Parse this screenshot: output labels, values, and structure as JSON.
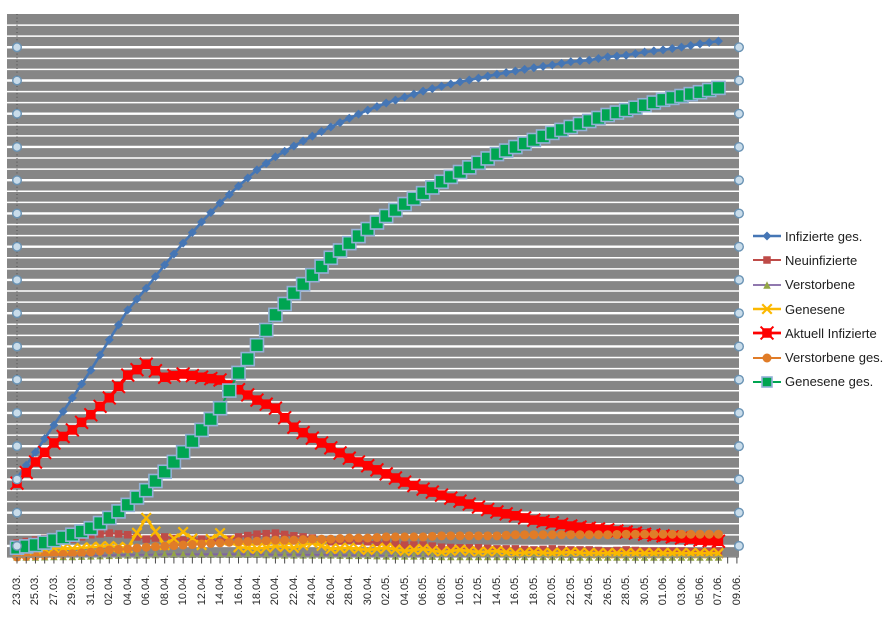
{
  "window": {
    "background": "#ffffff"
  },
  "chart_data": {
    "type": "line",
    "title": "",
    "x_tick_labels": [
      "23.03.",
      "25.03.",
      "27.03.",
      "29.03.",
      "31.03.",
      "02.04.",
      "04.04.",
      "06.04.",
      "08.04.",
      "10.04.",
      "12.04.",
      "14.04.",
      "16.04.",
      "18.04.",
      "20.04.",
      "22.04.",
      "24.04.",
      "26.04.",
      "28.04.",
      "30.04.",
      "02.05.",
      "04.05.",
      "06.05.",
      "08.05.",
      "10.05.",
      "12.05.",
      "14.05.",
      "16.05.",
      "18.05.",
      "20.05.",
      "22.05.",
      "24.05.",
      "26.05.",
      "28.05.",
      "30.05.",
      "01.06.",
      "03.06.",
      "05.06.",
      "07.06.",
      "09.06."
    ],
    "x_axis": {
      "labels_rotated_degrees": 90,
      "tick_every_day": true,
      "label_every_n_days": 2
    },
    "y_axis": {
      "tick_labels_visible": false,
      "value_scale": "percent of plot height (chart shows no y-axis labels)",
      "ylim": [
        0,
        100
      ]
    },
    "legend_position": "right",
    "grid": {
      "on": true,
      "minor_and_major_horizontal": true
    },
    "plot_style": {
      "background": "#868686",
      "gridline_color": "#ffffff",
      "selected_gridline_handles": true,
      "handle_fill": "#C9DCEA",
      "handle_stroke": "#6A93B4",
      "axis_color": "#4a4a4a"
    },
    "series": [
      {
        "name": "Infizierte ges.",
        "line_color": "#4576B5",
        "marker": "diamond",
        "marker_color": "#4576B5",
        "marker_size": 9,
        "line_width": 2.6,
        "values_pct": [
          14.5,
          19.3,
          24.3,
          29.3,
          34.4,
          40.0,
          45.5,
          49.5,
          53.8,
          57.8,
          61.7,
          65.2,
          68.3,
          71.3,
          73.7,
          75.7,
          77.5,
          79.2,
          80.8,
          82.3,
          83.6,
          84.7,
          85.8,
          86.7,
          87.5,
          88.2,
          88.9,
          89.5,
          90.1,
          90.6,
          91.2,
          91.5,
          92.1,
          92.4,
          93.0,
          93.4,
          93.9,
          94.5,
          95.0,
          null
        ]
      },
      {
        "name": "Neuinfizierte",
        "line_color": "#BE4B48",
        "marker": "square",
        "marker_color": "#BE4B48",
        "marker_size": 7.5,
        "line_width": 2.0,
        "values_pct": [
          2.6,
          3.1,
          3.7,
          3.3,
          4.1,
          4.4,
          4.1,
          3.3,
          3.7,
          3.1,
          3.3,
          2.9,
          3.7,
          4.2,
          4.4,
          3.9,
          3.5,
          2.8,
          3.1,
          2.8,
          2.6,
          2.2,
          2.2,
          1.8,
          1.7,
          1.7,
          1.5,
          1.5,
          1.3,
          1.5,
          1.3,
          1.3,
          1.1,
          1.3,
          1.1,
          1.1,
          1.1,
          0.9,
          1.1,
          null
        ]
      },
      {
        "name": "Verstorbene",
        "line_color": "#8064A2",
        "marker": "triangle",
        "marker_color": "#94A646",
        "marker_size": 7.5,
        "line_width": 1.8,
        "values_pct": [
          0.0,
          0.0,
          0.1,
          0.1,
          0.2,
          0.3,
          0.4,
          0.4,
          0.5,
          0.5,
          0.5,
          0.5,
          0.5,
          0.5,
          0.4,
          0.4,
          0.4,
          0.4,
          0.3,
          0.3,
          0.2,
          0.2,
          0.2,
          0.1,
          0.1,
          0.1,
          0.1,
          0.1,
          0.1,
          0.1,
          0.0,
          0.0,
          0.0,
          0.0,
          0.0,
          0.0,
          0.0,
          0.0,
          0.0,
          null
        ]
      },
      {
        "name": "Genesene",
        "line_color": "#FBB800",
        "marker": "x",
        "marker_color": "#FBB800",
        "marker_size": 9.5,
        "line_width": 2.6,
        "values_pct": [
          0.7,
          1.3,
          1.7,
          1.5,
          1.8,
          2.0,
          1.7,
          7.2,
          2.2,
          4.6,
          2.2,
          4.4,
          1.8,
          1.5,
          2.0,
          1.7,
          2.6,
          1.5,
          1.7,
          1.3,
          1.7,
          1.1,
          1.5,
          0.9,
          1.3,
          0.9,
          1.1,
          0.7,
          0.9,
          0.7,
          0.9,
          0.7,
          0.7,
          0.7,
          0.7,
          0.7,
          0.7,
          0.7,
          0.7,
          null
        ]
      },
      {
        "name": "Aktuell Infizierte",
        "line_color": "#FE0000",
        "marker": "square-x",
        "marker_color": "#FE0000",
        "marker_size": 9.5,
        "line_width": 3.2,
        "values_pct": [
          13.6,
          17.5,
          21.0,
          23.4,
          26.2,
          29.3,
          33.5,
          35.5,
          33.1,
          33.7,
          33.1,
          32.6,
          30.8,
          28.9,
          27.4,
          23.9,
          21.9,
          20.1,
          18.2,
          16.8,
          15.3,
          13.8,
          12.5,
          11.4,
          10.3,
          9.2,
          8.3,
          7.6,
          6.8,
          6.3,
          5.7,
          5.3,
          5.0,
          4.6,
          4.2,
          3.9,
          3.5,
          3.1,
          2.9,
          null
        ]
      },
      {
        "name": "Verstorbene ges.",
        "line_color": "#E07C28",
        "marker": "circle",
        "marker_color": "#E07C28",
        "marker_size": 9,
        "line_width": 2.0,
        "values_pct": [
          0.0,
          0.2,
          0.4,
          0.6,
          0.9,
          1.3,
          1.5,
          1.8,
          2.0,
          2.2,
          2.4,
          2.6,
          2.8,
          2.9,
          3.1,
          3.1,
          3.3,
          3.3,
          3.5,
          3.5,
          3.7,
          3.7,
          3.7,
          3.9,
          3.9,
          3.9,
          3.9,
          4.1,
          4.1,
          4.1,
          4.1,
          4.1,
          4.1,
          4.2,
          4.2,
          4.2,
          4.2,
          4.2,
          4.2,
          null
        ]
      },
      {
        "name": "Genesene ges.",
        "line_color": "#00A551",
        "marker": "square",
        "marker_color": "#00A551",
        "marker_border": "#93B1D7",
        "marker_size": 13,
        "line_width": 2.0,
        "values_pct": [
          1.7,
          2.2,
          3.1,
          4.1,
          5.3,
          7.2,
          9.6,
          12.3,
          15.7,
          19.3,
          23.4,
          27.4,
          33.9,
          39.0,
          44.6,
          48.6,
          51.9,
          55.1,
          57.8,
          60.4,
          62.8,
          65.0,
          67.0,
          69.1,
          70.9,
          72.6,
          74.2,
          75.5,
          76.8,
          78.1,
          79.2,
          80.3,
          81.4,
          82.3,
          83.2,
          84.2,
          84.9,
          85.6,
          86.4,
          null
        ]
      }
    ]
  }
}
